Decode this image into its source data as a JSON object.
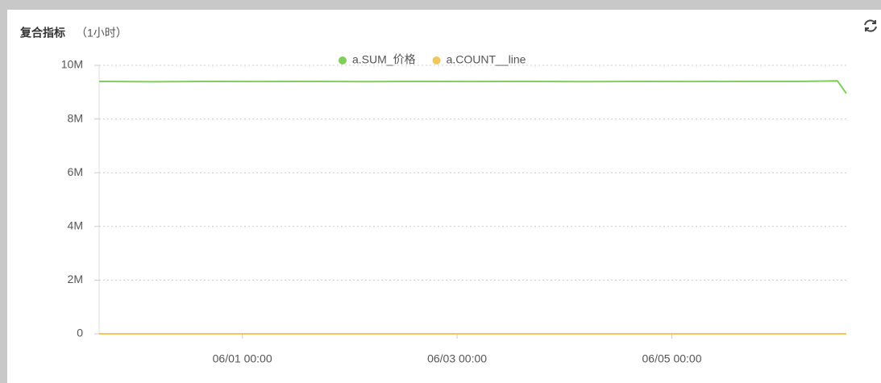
{
  "chart_data": {
    "type": "line",
    "title": "复合指标",
    "subtitle": "（1小时）",
    "x": [
      "05/30 16:00",
      "05/31 04:00",
      "05/31 16:00",
      "06/01 04:00",
      "06/01 16:00",
      "06/02 04:00",
      "06/02 16:00",
      "06/03 04:00",
      "06/03 16:00",
      "06/04 04:00",
      "06/04 16:00",
      "06/05 04:00",
      "06/05 16:00",
      "06/06 04:00",
      "06/06 13:00",
      "06/06 15:00"
    ],
    "series": [
      {
        "name": "a.SUM_价格",
        "color": "#7fcf5b",
        "values": [
          9400000,
          9390000,
          9400000,
          9395000,
          9400000,
          9392000,
          9400000,
          9395000,
          9400000,
          9393000,
          9400000,
          9395000,
          9400000,
          9398000,
          9420000,
          8950000
        ]
      },
      {
        "name": "a.COUNT__line",
        "color": "#f0c75a",
        "values": [
          0,
          0,
          0,
          0,
          0,
          0,
          0,
          0,
          0,
          0,
          0,
          0,
          0,
          0,
          0,
          0
        ]
      }
    ],
    "xlim": [
      "05/30 16:00",
      "06/06 15:00"
    ],
    "xticks": [
      "06/01 00:00",
      "06/03 00:00",
      "06/05 00:00"
    ],
    "ylim": [
      0,
      10000000
    ],
    "yticks": [
      0,
      {
        "value": 2000000,
        "label": "2M"
      },
      {
        "value": 4000000,
        "label": "4M"
      },
      {
        "value": 6000000,
        "label": "6M"
      },
      {
        "value": 8000000,
        "label": "8M"
      },
      {
        "value": 10000000,
        "label": "10M"
      }
    ],
    "grid": true,
    "legend": "top"
  }
}
